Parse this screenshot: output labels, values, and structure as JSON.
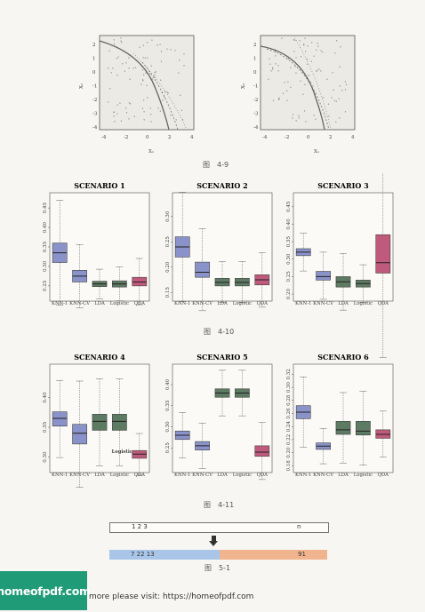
{
  "figures": {
    "fig49": {
      "caption": "图　4-9",
      "axis_x": "X₁",
      "axis_y": "X₂",
      "xticks": [
        "-4",
        "-2",
        "0",
        "2",
        "4"
      ],
      "yticks": [
        "2",
        "1",
        "0",
        "-1",
        "-2",
        "-3",
        "-4"
      ]
    },
    "fig410": {
      "caption": "图　4-10",
      "categories": [
        "KNN-1",
        "KNN-CV",
        "LDA",
        "Logistic",
        "QDA"
      ],
      "colors": [
        "#8a93c9",
        "#8a93c9",
        "#5d7a62",
        "#5d7a62",
        "#c05a7c"
      ]
    },
    "fig411": {
      "caption": "图　4-11",
      "categories": [
        "KNN-1",
        "KNN-CV",
        "LDA",
        "Logistic",
        "QDA"
      ]
    },
    "fig51": {
      "caption": "图　5-1",
      "top_left": "1 2 3",
      "top_right": "n",
      "bottom_left": "7 22 13",
      "bottom_right": "91"
    }
  },
  "chart_data": [
    {
      "type": "box",
      "title": "SCENARIO 1",
      "categories": [
        "KNN-1",
        "KNN-CV",
        "LDA",
        "Logistic",
        "QDA"
      ],
      "yticks": [
        "0.25",
        "0.30",
        "0.35",
        "0.40",
        "0.45"
      ],
      "ylim": [
        0.22,
        0.48
      ],
      "medians": [
        0.335,
        0.275,
        0.255,
        0.255,
        0.26
      ],
      "q1": [
        0.31,
        0.26,
        0.248,
        0.247,
        0.25
      ],
      "q3": [
        0.36,
        0.29,
        0.262,
        0.263,
        0.272
      ]
    },
    {
      "type": "box",
      "title": "SCENARIO 2",
      "categories": [
        "KNN-1",
        "KNN-CV",
        "LDA",
        "Logistic",
        "QDA"
      ],
      "yticks": [
        "0.15",
        "0.20",
        "0.25",
        "0.30"
      ],
      "ylim": [
        0.14,
        0.34
      ],
      "medians": [
        0.24,
        0.19,
        0.17,
        0.17,
        0.175
      ],
      "q1": [
        0.22,
        0.18,
        0.163,
        0.163,
        0.165
      ],
      "q3": [
        0.26,
        0.21,
        0.178,
        0.178,
        0.185
      ]
    },
    {
      "type": "box",
      "title": "SCENARIO 3",
      "categories": [
        "KNN-1",
        "KNN-CV",
        "LDA",
        "Logistic",
        "QDA"
      ],
      "yticks": [
        "0.20",
        "0.25",
        "0.30",
        "0.35",
        "0.40",
        "0.45"
      ],
      "ylim": [
        0.19,
        0.48
      ],
      "medians": [
        0.32,
        0.25,
        0.235,
        0.23,
        0.29
      ],
      "q1": [
        0.31,
        0.24,
        0.22,
        0.22,
        0.26
      ],
      "q3": [
        0.33,
        0.265,
        0.25,
        0.24,
        0.37
      ]
    },
    {
      "type": "box",
      "title": "SCENARIO 4",
      "categories": [
        "KNN-1",
        "KNN-CV",
        "LDA",
        "Logistic",
        "QDA"
      ],
      "yticks": [
        "0.30",
        "0.35",
        "0.40"
      ],
      "ylim": [
        0.28,
        0.45
      ],
      "medians": [
        0.365,
        0.34,
        0.36,
        0.36,
        0.305
      ],
      "q1": [
        0.352,
        0.322,
        0.345,
        0.345,
        0.298
      ],
      "q3": [
        0.376,
        0.355,
        0.372,
        0.372,
        0.311
      ]
    },
    {
      "type": "box",
      "title": "SCENARIO 5",
      "categories": [
        "KNN-1",
        "KNN-CV",
        "LDA",
        "Logistic",
        "QDA"
      ],
      "yticks": [
        "0.25",
        "0.30",
        "0.35",
        "0.40"
      ],
      "ylim": [
        0.2,
        0.44
      ],
      "medians": [
        0.28,
        0.255,
        0.38,
        0.38,
        0.24
      ],
      "q1": [
        0.27,
        0.245,
        0.37,
        0.37,
        0.23
      ],
      "q3": [
        0.29,
        0.265,
        0.39,
        0.39,
        0.255
      ]
    },
    {
      "type": "box",
      "title": "SCENARIO 6",
      "categories": [
        "KNN-1",
        "KNN-CV",
        "LDA",
        "Logistic",
        "QDA"
      ],
      "yticks": [
        "0.18",
        "0.20",
        "0.22",
        "0.24",
        "0.26",
        "0.28",
        "0.30",
        "0.32"
      ],
      "ylim": [
        0.175,
        0.33
      ],
      "medians": [
        0.262,
        0.21,
        0.235,
        0.233,
        0.228
      ],
      "q1": [
        0.252,
        0.205,
        0.228,
        0.227,
        0.222
      ],
      "q3": [
        0.272,
        0.215,
        0.248,
        0.248,
        0.235
      ]
    }
  ],
  "annotation": {
    "logistic_label": "Logistic"
  },
  "footer": {
    "logo_text": "homeofpdf.com",
    "text": "more please visit: https://homeofpdf.com"
  }
}
